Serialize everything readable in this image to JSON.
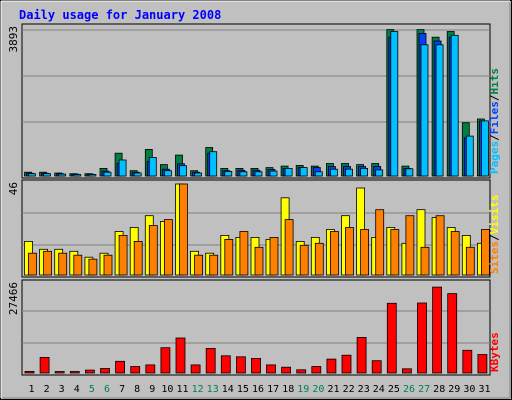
{
  "title": "Daily usage for January 2008",
  "colors": {
    "frame_bg": "#c0c0c0",
    "panel_bg": "#c0c0c0",
    "grid": "#808080",
    "hits": "#008040",
    "files": "#0040ff",
    "pages": "#00c0ff",
    "visits": "#ffff00",
    "sites": "#ff8000",
    "kbytes": "#ff0000",
    "day_normal": "#000000",
    "day_weekend": "#00805c",
    "title": "#0000ff"
  },
  "legend": {
    "top": [
      {
        "text": "Pages",
        "color": "#00c0ff"
      },
      {
        "text": "/",
        "color": "#000000"
      },
      {
        "text": "Files",
        "color": "#0040ff"
      },
      {
        "text": "/",
        "color": "#000000"
      },
      {
        "text": "Hits",
        "color": "#008040"
      }
    ],
    "mid": [
      {
        "text": "Sites",
        "color": "#ff8000"
      },
      {
        "text": "/",
        "color": "#000000"
      },
      {
        "text": "Visits",
        "color": "#ffff00"
      }
    ],
    "bottom": [
      {
        "text": "KBytes",
        "color": "#ff0000"
      }
    ]
  },
  "chart_data": {
    "type": "bar",
    "title": "Daily usage for January 2008",
    "categories": [
      "1",
      "2",
      "3",
      "4",
      "5",
      "6",
      "7",
      "8",
      "9",
      "10",
      "11",
      "12",
      "13",
      "14",
      "15",
      "16",
      "17",
      "18",
      "19",
      "20",
      "21",
      "22",
      "23",
      "24",
      "25",
      "26",
      "27",
      "28",
      "29",
      "30",
      "31"
    ],
    "weekend_days": [
      "5",
      "6",
      "12",
      "13",
      "19",
      "20",
      "26",
      "27"
    ],
    "panels": [
      {
        "name": "top",
        "max_label": "3893",
        "ylim": [
          0,
          3893
        ],
        "series": [
          {
            "name": "Hits",
            "values": [
              100,
              100,
              80,
              60,
              60,
              200,
              600,
              140,
              700,
              300,
              550,
              140,
              750,
              200,
              200,
              200,
              220,
              260,
              280,
              260,
              330,
              330,
              300,
              330,
              3850,
              260,
              3850,
              3650,
              3800,
              1400,
              1500
            ]
          },
          {
            "name": "Files",
            "values": [
              70,
              70,
              60,
              50,
              50,
              130,
              330,
              100,
              380,
              180,
              320,
              100,
              600,
              140,
              150,
              150,
              170,
              200,
              220,
              220,
              250,
              250,
              250,
              250,
              3650,
              200,
              3750,
              3550,
              3650,
              1000,
              1450
            ]
          },
          {
            "name": "Pages",
            "values": [
              60,
              60,
              50,
              40,
              40,
              100,
              420,
              80,
              490,
              140,
              270,
              80,
              640,
              120,
              110,
              110,
              130,
              200,
              220,
              110,
              180,
              180,
              200,
              160,
              3800,
              190,
              3450,
              3450,
              3700,
              1050,
              1450
            ]
          }
        ]
      },
      {
        "name": "mid",
        "max_label": "46",
        "ylim": [
          0,
          46
        ],
        "series": [
          {
            "name": "Visits",
            "values": [
              17,
              13,
              13,
              12,
              9,
              11,
              22,
              24,
              30,
              27,
              46,
              12,
              11,
              20,
              19,
              19,
              18,
              39,
              17,
              19,
              23,
              30,
              44,
              19,
              24,
              16,
              33,
              29,
              24,
              20,
              16
            ]
          },
          {
            "name": "Sites",
            "values": [
              11,
              12,
              11,
              10,
              8,
              10,
              20,
              17,
              25,
              28,
              46,
              10,
              10,
              18,
              22,
              14,
              19,
              28,
              15,
              16,
              22,
              24,
              23,
              33,
              23,
              30,
              14,
              30,
              22,
              14,
              23
            ]
          }
        ]
      },
      {
        "name": "bottom",
        "max_label": "27466",
        "ylim": [
          0,
          27466
        ],
        "series": [
          {
            "name": "KBytes",
            "values": [
              500,
              4800,
              400,
              400,
              900,
              1400,
              3600,
              2000,
              2500,
              7800,
              10800,
              2500,
              7600,
              5300,
              5000,
              4500,
              2500,
              1800,
              1000,
              2000,
              4300,
              5500,
              11000,
              3800,
              21500,
              1300,
              21600,
              26500,
              24500,
              7000,
              5700
            ]
          }
        ]
      }
    ]
  }
}
